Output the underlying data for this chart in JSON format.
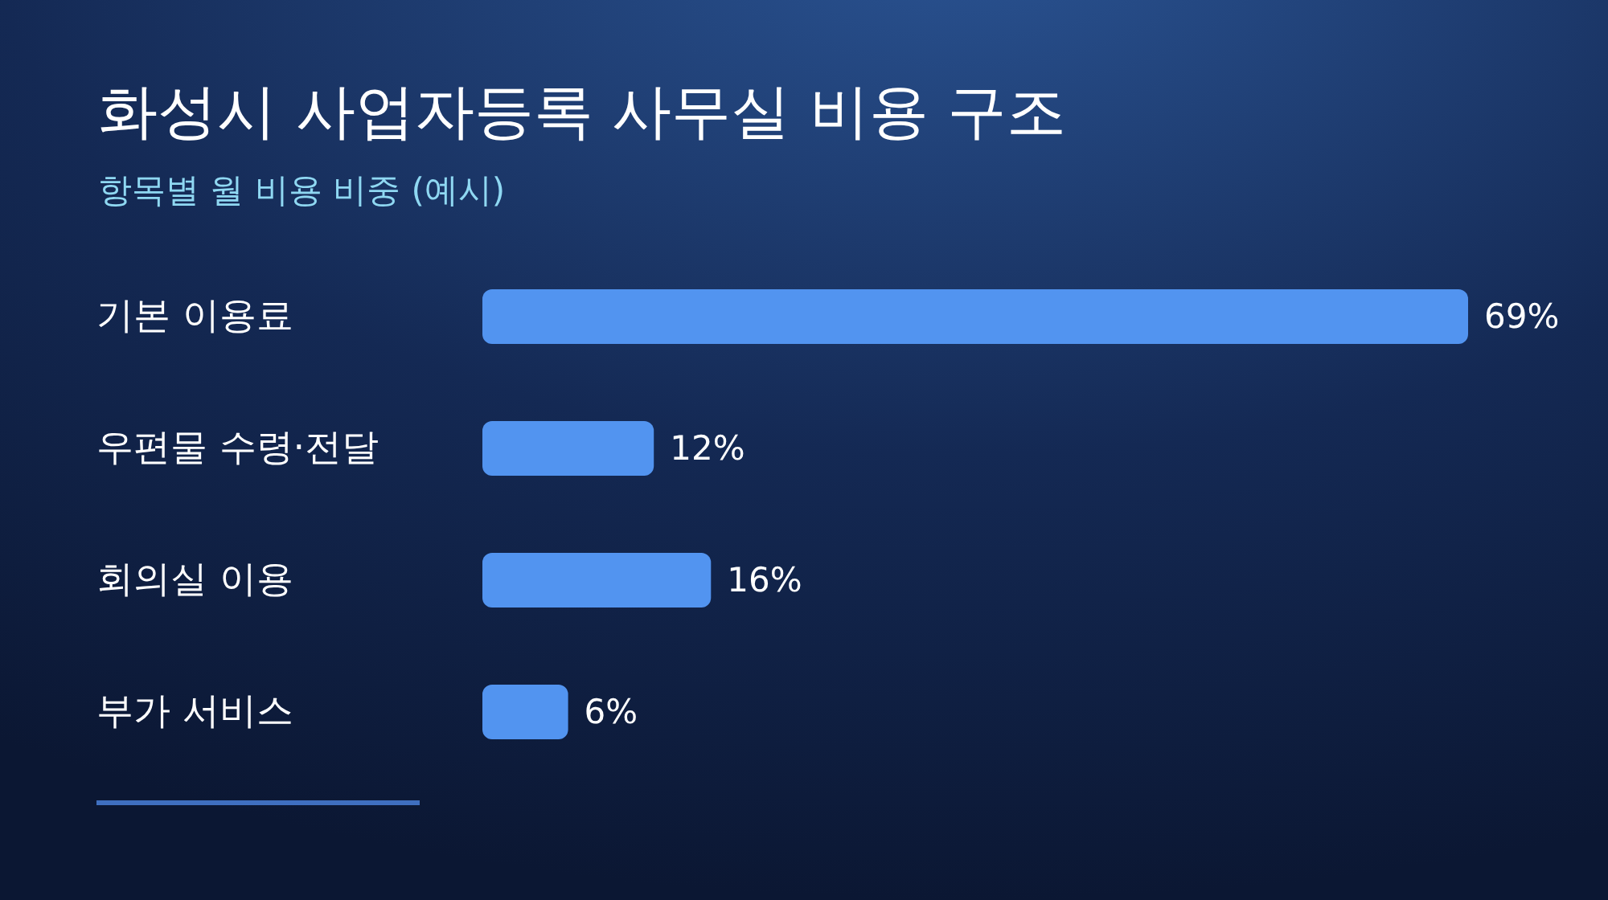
{
  "chart_data": {
    "type": "bar",
    "title": "화성시 사업자등록 사무실 비용 구조",
    "subtitle": "항목별 월 비용 비중 (예시)",
    "orientation": "horizontal",
    "categories": [
      "기본 이용료",
      "우편물 수령·전달",
      "회의실 이용",
      "부가 서비스"
    ],
    "values": [
      69,
      12,
      16,
      6
    ],
    "color": "#5294f0",
    "value_labels": [
      "69%",
      "12%",
      "16%",
      "6%"
    ],
    "tick_labels": "y"
  }
}
